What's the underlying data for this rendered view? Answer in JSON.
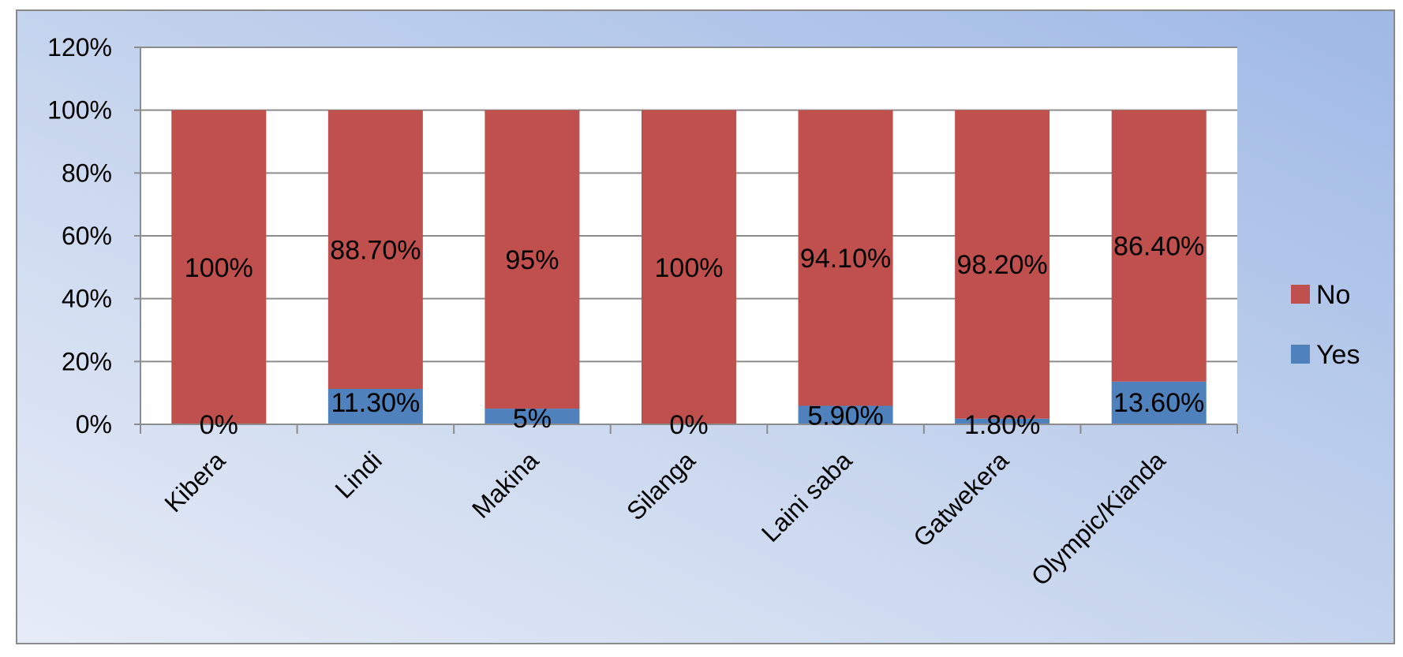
{
  "chart_data": {
    "type": "bar",
    "stacked": true,
    "categories": [
      "Kibera",
      "Lindi",
      "Makina",
      "Silanga",
      "Laini saba",
      "Gatwekera",
      "Olympic/Kianda"
    ],
    "series": [
      {
        "name": "Yes",
        "color": "#4f81bd",
        "values": [
          0,
          11.3,
          5,
          0,
          5.9,
          1.8,
          13.6
        ],
        "labels": [
          "0%",
          "11.30%",
          "5%",
          "0%",
          "5.90%",
          "1.80%",
          "13.60%"
        ]
      },
      {
        "name": "No",
        "color": "#c0504d",
        "values": [
          100,
          88.7,
          95,
          100,
          94.1,
          98.2,
          86.4
        ],
        "labels": [
          "100%",
          "88.70%",
          "95%",
          "100%",
          "94.10%",
          "98.20%",
          "86.40%"
        ]
      }
    ],
    "y_ticks": [
      "0%",
      "20%",
      "40%",
      "60%",
      "80%",
      "100%",
      "120%"
    ],
    "ylim": [
      0,
      120
    ],
    "grid": true,
    "legend_position": "right",
    "legend_order": [
      "No",
      "Yes"
    ]
  }
}
